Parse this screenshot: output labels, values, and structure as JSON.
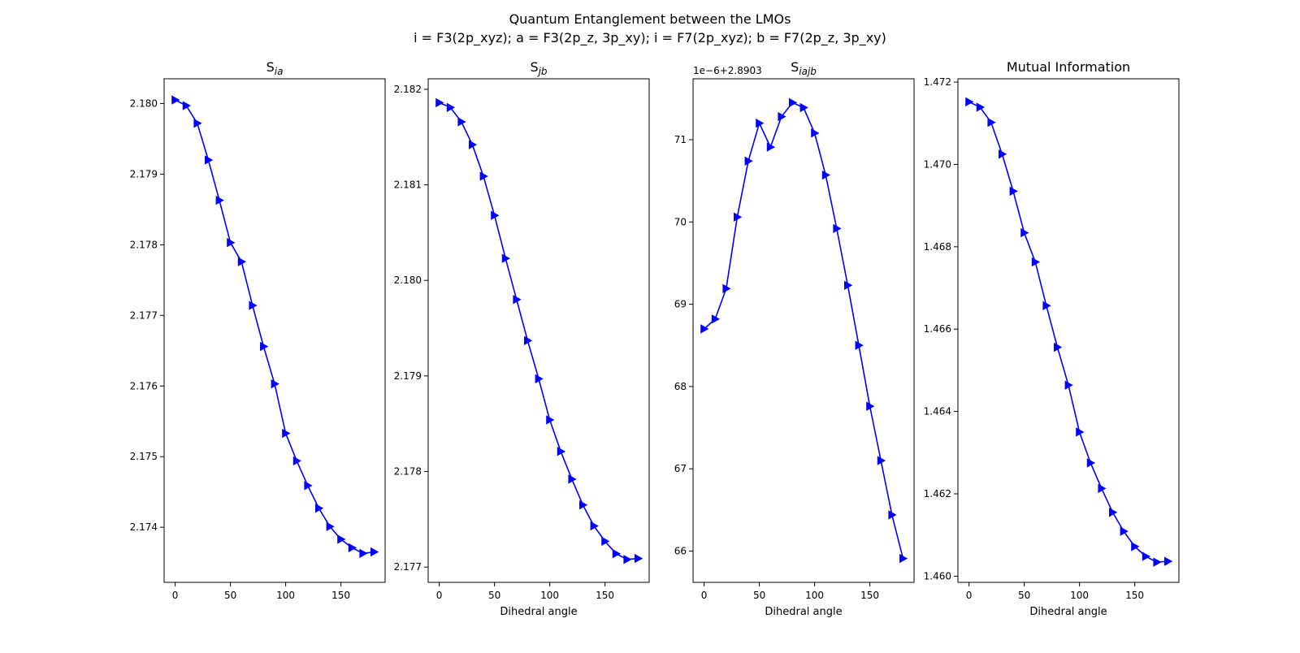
{
  "figure": {
    "title_line1": "Quantum Entanglement between the LMOs",
    "title_line2": "i = F3(2p_xyz); a = F3(2p_z, 3p_xy); i = F7(2p_xyz); b = F7(2p_z, 3p_xy)"
  },
  "style": {
    "line_color": "#0000ff",
    "marker": "triangle-right"
  },
  "chart_data": [
    {
      "type": "line",
      "title": "S_ia",
      "xlabel": "",
      "ylabel": "",
      "offset_label": "",
      "x": [
        0,
        10,
        20,
        30,
        40,
        50,
        60,
        70,
        80,
        90,
        100,
        110,
        120,
        130,
        140,
        150,
        160,
        170,
        180
      ],
      "values": [
        2.18005,
        2.17997,
        2.17972,
        2.1792,
        2.17863,
        2.17803,
        2.17776,
        2.17714,
        2.17656,
        2.17603,
        2.17533,
        2.17494,
        2.17459,
        2.17427,
        2.17401,
        2.17383,
        2.17371,
        2.17363,
        2.17365
      ],
      "xlim": [
        -10,
        190
      ],
      "ylim": [
        2.17322,
        2.18035
      ],
      "xticks": [
        0,
        50,
        100,
        150
      ],
      "yticks": [
        2.174,
        2.175,
        2.176,
        2.177,
        2.178,
        2.179,
        2.18
      ],
      "ytick_labels": [
        "2.174",
        "2.175",
        "2.176",
        "2.177",
        "2.178",
        "2.179",
        "2.180"
      ]
    },
    {
      "type": "line",
      "title": "S_jb",
      "xlabel": "Dihedral angle",
      "ylabel": "",
      "offset_label": "",
      "x": [
        0,
        10,
        20,
        30,
        40,
        50,
        60,
        70,
        80,
        90,
        100,
        110,
        120,
        130,
        140,
        150,
        160,
        170,
        180
      ],
      "values": [
        2.18186,
        2.18181,
        2.18166,
        2.18142,
        2.18109,
        2.18068,
        2.18023,
        2.1798,
        2.17937,
        2.17897,
        2.17854,
        2.17821,
        2.17792,
        2.17765,
        2.17743,
        2.17727,
        2.17714,
        2.17708,
        2.17709
      ],
      "xlim": [
        -10,
        190
      ],
      "ylim": [
        2.17684,
        2.18211
      ],
      "xticks": [
        0,
        50,
        100,
        150
      ],
      "yticks": [
        2.177,
        2.178,
        2.179,
        2.18,
        2.181,
        2.182
      ],
      "ytick_labels": [
        "2.177",
        "2.178",
        "2.179",
        "2.180",
        "2.181",
        "2.182"
      ]
    },
    {
      "type": "line",
      "title": "S_iajb",
      "xlabel": "Dihedral angle",
      "ylabel": "",
      "offset_label": "1e−6+2.8903",
      "x": [
        0,
        10,
        20,
        30,
        40,
        50,
        60,
        70,
        80,
        90,
        100,
        110,
        120,
        130,
        140,
        150,
        160,
        170,
        180
      ],
      "values": [
        68.7,
        68.82,
        69.19,
        70.06,
        70.74,
        71.2,
        70.91,
        71.28,
        71.45,
        71.39,
        71.08,
        70.57,
        69.92,
        69.23,
        68.5,
        67.76,
        67.1,
        66.44,
        65.91
      ],
      "xlim": [
        -10,
        190
      ],
      "ylim": [
        65.62,
        71.74
      ],
      "xticks": [
        0,
        50,
        100,
        150
      ],
      "yticks": [
        66,
        67,
        68,
        69,
        70,
        71
      ],
      "ytick_labels": [
        "66",
        "67",
        "68",
        "69",
        "70",
        "71"
      ]
    },
    {
      "type": "line",
      "title": "Mutual Information",
      "xlabel": "Dihedral angle",
      "ylabel": "",
      "offset_label": "",
      "x": [
        0,
        10,
        20,
        30,
        40,
        50,
        60,
        70,
        80,
        90,
        100,
        110,
        120,
        130,
        140,
        150,
        160,
        170,
        180
      ],
      "values": [
        1.47152,
        1.47139,
        1.47102,
        1.47025,
        1.46935,
        1.46834,
        1.46763,
        1.46657,
        1.46556,
        1.46464,
        1.4635,
        1.46275,
        1.46213,
        1.46155,
        1.46109,
        1.46072,
        1.46048,
        1.46034,
        1.46036
      ],
      "xlim": [
        -10,
        190
      ],
      "ylim": [
        1.45985,
        1.47208
      ],
      "xticks": [
        0,
        50,
        100,
        150
      ],
      "yticks": [
        1.46,
        1.462,
        1.464,
        1.466,
        1.468,
        1.47,
        1.472
      ],
      "ytick_labels": [
        "1.460",
        "1.462",
        "1.464",
        "1.466",
        "1.468",
        "1.470",
        "1.472"
      ]
    }
  ]
}
